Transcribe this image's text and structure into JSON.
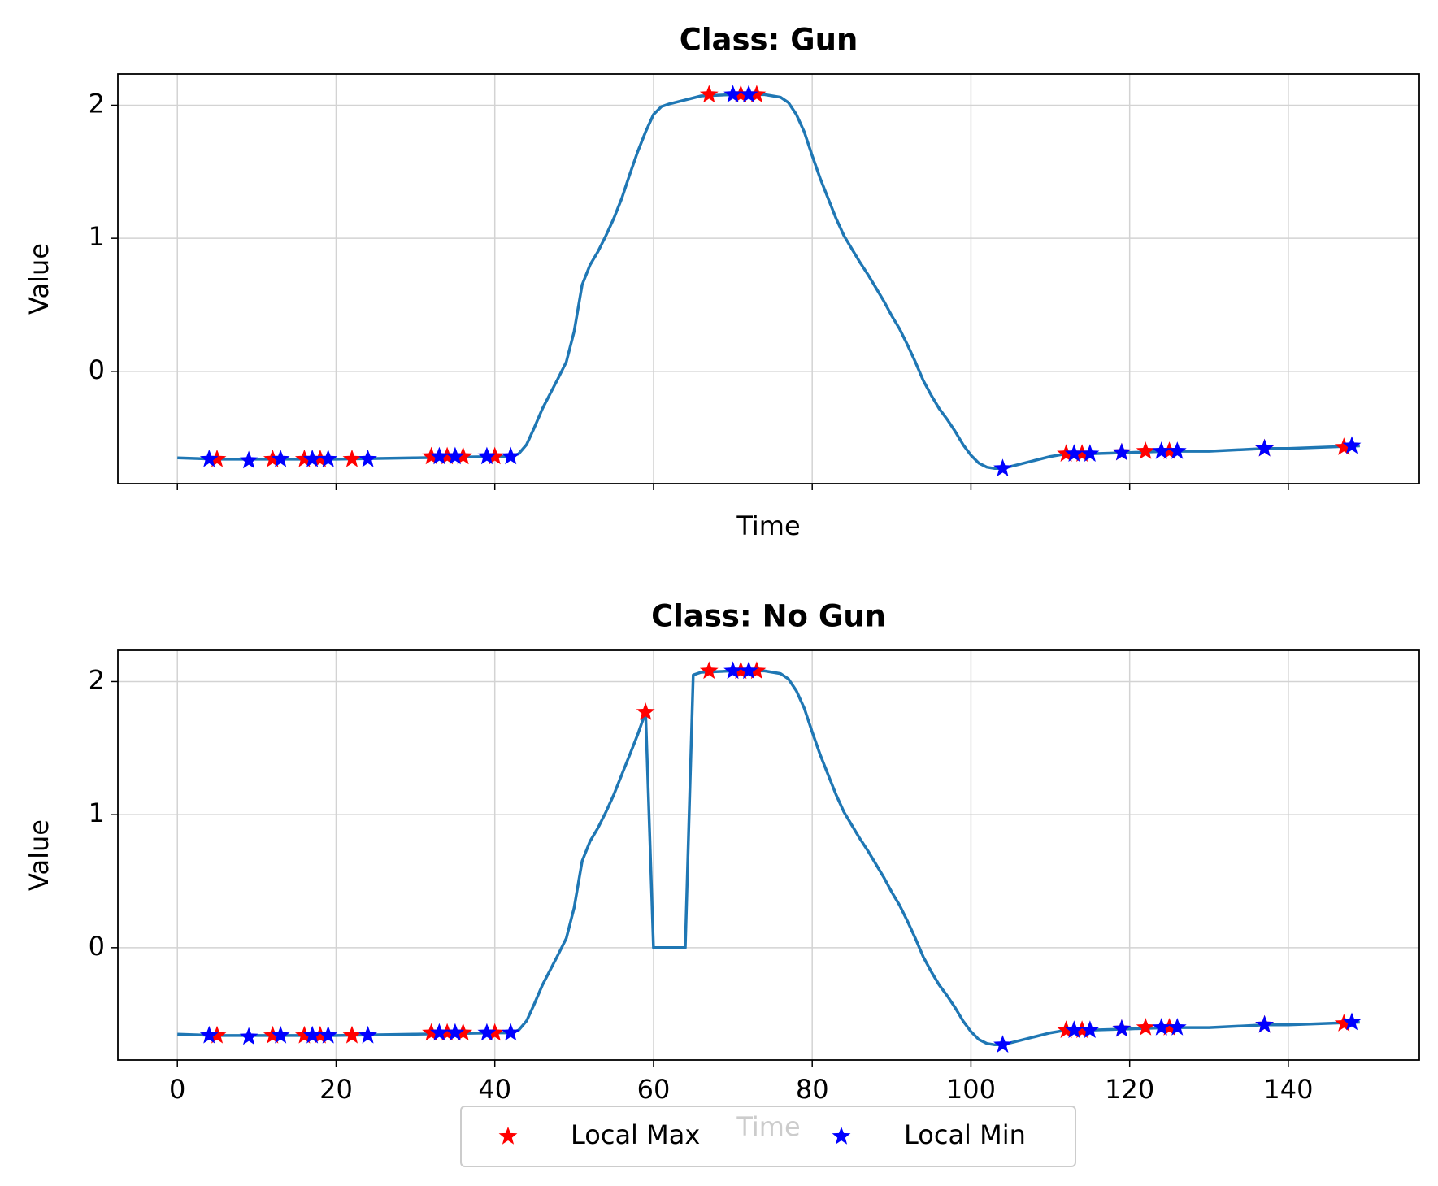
{
  "chart_data": [
    {
      "type": "line",
      "title": "Class: Gun",
      "xlabel": "Time",
      "ylabel": "Value",
      "xlim": [
        -7.5,
        156.5
      ],
      "ylim": [
        -0.844,
        2.235
      ],
      "xticks": [
        0,
        20,
        40,
        60,
        80,
        100,
        120,
        140
      ],
      "yticks": [
        0,
        1,
        2
      ],
      "grid": true,
      "series": [
        {
          "color": "#1f77b4",
          "x": [
            0,
            5,
            10,
            20,
            30,
            40,
            42,
            43,
            44,
            45,
            46,
            48,
            49,
            50,
            51,
            52,
            53,
            54,
            55,
            56,
            57,
            58,
            59,
            60,
            61,
            62,
            64,
            66,
            70,
            74,
            76,
            77,
            78,
            79,
            80,
            81,
            82,
            83,
            84,
            85,
            86,
            87,
            88,
            89,
            90,
            91,
            92,
            93,
            94,
            95,
            96,
            97,
            98,
            99,
            100,
            101,
            102,
            103,
            104,
            106,
            108,
            110,
            112,
            115,
            120,
            125,
            130,
            137,
            140,
            149
          ],
          "values": [
            -0.65,
            -0.66,
            -0.66,
            -0.66,
            -0.65,
            -0.64,
            -0.64,
            -0.62,
            -0.55,
            -0.42,
            -0.28,
            -0.05,
            0.07,
            0.3,
            0.65,
            0.8,
            0.9,
            1.02,
            1.15,
            1.3,
            1.48,
            1.65,
            1.8,
            1.93,
            1.99,
            2.01,
            2.04,
            2.07,
            2.08,
            2.08,
            2.06,
            2.02,
            1.93,
            1.8,
            1.62,
            1.45,
            1.3,
            1.15,
            1.02,
            0.92,
            0.82,
            0.73,
            0.63,
            0.53,
            0.42,
            0.32,
            0.2,
            0.07,
            -0.07,
            -0.18,
            -0.28,
            -0.36,
            -0.45,
            -0.55,
            -0.63,
            -0.69,
            -0.72,
            -0.73,
            -0.73,
            -0.7,
            -0.67,
            -0.64,
            -0.62,
            -0.62,
            -0.61,
            -0.6,
            -0.6,
            -0.58,
            -0.58,
            -0.56
          ]
        },
        {
          "name": "Local Max",
          "color": "red",
          "x": [
            5,
            12,
            16,
            18,
            22,
            32,
            34,
            36,
            40,
            67,
            71,
            73,
            112,
            114,
            119,
            122,
            125,
            137,
            147
          ],
          "values": [
            -0.66,
            -0.66,
            -0.66,
            -0.66,
            -0.66,
            -0.64,
            -0.64,
            -0.64,
            -0.64,
            2.08,
            2.08,
            2.08,
            -0.62,
            -0.62,
            -0.61,
            -0.6,
            -0.6,
            -0.58,
            -0.57
          ]
        },
        {
          "name": "Local Min",
          "color": "blue",
          "x": [
            4,
            9,
            13,
            17,
            19,
            24,
            33,
            35,
            39,
            42,
            70,
            72,
            104,
            113,
            115,
            119,
            124,
            126,
            137,
            148
          ],
          "values": [
            -0.66,
            -0.67,
            -0.66,
            -0.66,
            -0.66,
            -0.66,
            -0.64,
            -0.64,
            -0.64,
            -0.64,
            2.08,
            2.08,
            -0.73,
            -0.62,
            -0.62,
            -0.61,
            -0.6,
            -0.6,
            -0.58,
            -0.56
          ]
        }
      ]
    },
    {
      "type": "line",
      "title": "Class: No Gun",
      "xlabel": "Time",
      "ylabel": "Value",
      "xlim": [
        -7.5,
        156.5
      ],
      "ylim": [
        -0.844,
        2.235
      ],
      "xticks": [
        0,
        20,
        40,
        60,
        80,
        100,
        120,
        140
      ],
      "yticks": [
        0,
        1,
        2
      ],
      "grid": true,
      "series": [
        {
          "color": "#1f77b4",
          "x": [
            0,
            5,
            10,
            20,
            30,
            40,
            42,
            43,
            44,
            45,
            46,
            48,
            49,
            50,
            51,
            52,
            53,
            54,
            55,
            56,
            57,
            58,
            59,
            60,
            64,
            65,
            66,
            70,
            74,
            76,
            77,
            78,
            79,
            80,
            81,
            82,
            83,
            84,
            85,
            86,
            87,
            88,
            89,
            90,
            91,
            92,
            93,
            94,
            95,
            96,
            97,
            98,
            99,
            100,
            101,
            102,
            103,
            104,
            106,
            108,
            110,
            112,
            115,
            120,
            125,
            130,
            137,
            140,
            149
          ],
          "values": [
            -0.65,
            -0.66,
            -0.66,
            -0.66,
            -0.65,
            -0.64,
            -0.64,
            -0.62,
            -0.55,
            -0.42,
            -0.28,
            -0.05,
            0.07,
            0.3,
            0.65,
            0.8,
            0.9,
            1.02,
            1.15,
            1.3,
            1.45,
            1.6,
            1.77,
            0,
            0,
            2.05,
            2.07,
            2.08,
            2.08,
            2.06,
            2.02,
            1.93,
            1.8,
            1.62,
            1.45,
            1.3,
            1.15,
            1.02,
            0.92,
            0.82,
            0.73,
            0.63,
            0.53,
            0.42,
            0.32,
            0.2,
            0.07,
            -0.07,
            -0.18,
            -0.28,
            -0.36,
            -0.45,
            -0.55,
            -0.63,
            -0.69,
            -0.72,
            -0.73,
            -0.73,
            -0.7,
            -0.67,
            -0.64,
            -0.62,
            -0.62,
            -0.61,
            -0.6,
            -0.6,
            -0.58,
            -0.58,
            -0.56
          ]
        },
        {
          "name": "Local Max",
          "color": "red",
          "x": [
            5,
            12,
            16,
            18,
            22,
            32,
            34,
            36,
            40,
            59,
            67,
            71,
            73,
            112,
            114,
            119,
            122,
            125,
            137,
            147
          ],
          "values": [
            -0.66,
            -0.66,
            -0.66,
            -0.66,
            -0.66,
            -0.64,
            -0.64,
            -0.64,
            -0.64,
            1.77,
            2.08,
            2.08,
            2.08,
            -0.62,
            -0.62,
            -0.61,
            -0.6,
            -0.6,
            -0.58,
            -0.57
          ]
        },
        {
          "name": "Local Min",
          "color": "blue",
          "x": [
            4,
            9,
            13,
            17,
            19,
            24,
            33,
            35,
            39,
            42,
            70,
            72,
            104,
            113,
            115,
            119,
            124,
            126,
            137,
            148
          ],
          "values": [
            -0.66,
            -0.67,
            -0.66,
            -0.66,
            -0.66,
            -0.66,
            -0.64,
            -0.64,
            -0.64,
            -0.64,
            2.08,
            2.08,
            -0.73,
            -0.62,
            -0.62,
            -0.61,
            -0.6,
            -0.6,
            -0.58,
            -0.56
          ]
        }
      ]
    }
  ]
}
